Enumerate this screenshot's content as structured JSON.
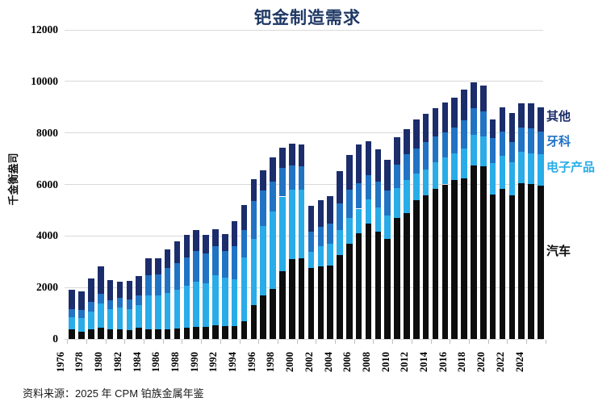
{
  "title": "钯金制造需求",
  "source": "资料来源：2025 年 CPM 铂族金属年鉴",
  "colors": {
    "automotive": "#0d0d0d",
    "electronics": "#29ace8",
    "dental": "#2173c4",
    "other": "#1c2d6b",
    "title_text": "#1f3864",
    "gridline": "#d9d9d9"
  },
  "legend": [
    {
      "label": "其他",
      "color": "#1c2d6b"
    },
    {
      "label": "牙科",
      "color": "#2173c4"
    },
    {
      "label": "电子产品",
      "color": "#29ace8"
    },
    {
      "label": "汽车",
      "color": "#0d0d0d"
    }
  ],
  "chart_data": {
    "type": "bar",
    "stacked": true,
    "title": "钯金制造需求",
    "ylabel": "千金衡盎司",
    "xlabel": "",
    "ylim": [
      0,
      12000
    ],
    "yticks": [
      0,
      2000,
      4000,
      6000,
      8000,
      10000,
      12000
    ],
    "grid": true,
    "legend_position": "right",
    "x": [
      1976,
      1977,
      1978,
      1979,
      1980,
      1981,
      1982,
      1983,
      1984,
      1985,
      1986,
      1987,
      1988,
      1989,
      1990,
      1991,
      1992,
      1993,
      1994,
      1995,
      1996,
      1997,
      1998,
      1999,
      2000,
      2001,
      2002,
      2003,
      2004,
      2005,
      2006,
      2007,
      2008,
      2009,
      2010,
      2011,
      2012,
      2013,
      2014,
      2015,
      2016,
      2017,
      2018,
      2019,
      2020,
      2021,
      2022,
      2023,
      2024,
      2025
    ],
    "x_tick_labels": [
      "1976",
      "1978",
      "1980",
      "1982",
      "1984",
      "1986",
      "1988",
      "1990",
      "1992",
      "1994",
      "1996",
      "1998",
      "2000",
      "2002",
      "2004",
      "2006",
      "2008",
      "2010",
      "2012",
      "2014",
      "2016",
      "2018",
      "2020",
      "2022",
      "2024"
    ],
    "series": [
      {
        "name": "汽车",
        "color": "#0d0d0d",
        "values": [
          380,
          280,
          380,
          430,
          380,
          380,
          330,
          430,
          380,
          380,
          380,
          410,
          430,
          480,
          480,
          530,
          490,
          490,
          700,
          1320,
          1700,
          1950,
          2640,
          3110,
          3140,
          2770,
          2830,
          2850,
          3270,
          3690,
          4090,
          4480,
          4170,
          3900,
          4690,
          4900,
          5380,
          5590,
          5820,
          6000,
          6160,
          6220,
          6740,
          6690,
          5600,
          5820,
          5590,
          6060,
          6030,
          5950
        ]
      },
      {
        "name": "电子产品",
        "color": "#29ace8",
        "values": [
          480,
          530,
          690,
          950,
          790,
          840,
          840,
          900,
          1300,
          1320,
          1420,
          1500,
          1630,
          1740,
          1680,
          1950,
          1890,
          1840,
          2470,
          2580,
          2680,
          3000,
          2890,
          2680,
          2650,
          620,
          760,
          860,
          950,
          1000,
          970,
          950,
          950,
          900,
          1160,
          1260,
          1030,
          1000,
          1030,
          1050,
          1050,
          1160,
          1180,
          1160,
          1240,
          1300,
          1260,
          1210,
          1190,
          1210
        ]
      },
      {
        "name": "牙科",
        "color": "#2173c4",
        "values": [
          300,
          320,
          370,
          370,
          340,
          370,
          370,
          370,
          810,
          820,
          950,
          1050,
          1110,
          1210,
          1160,
          1110,
          1050,
          1260,
          1070,
          1470,
          1370,
          1160,
          1110,
          950,
          900,
          780,
          760,
          770,
          1050,
          1110,
          1000,
          920,
          1000,
          950,
          930,
          1000,
          990,
          1050,
          1000,
          970,
          1000,
          1110,
          1030,
          1000,
          950,
          920,
          790,
          950,
          950,
          900
        ]
      },
      {
        "name": "其他",
        "color": "#1c2d6b",
        "values": [
          760,
          710,
          920,
          1080,
          790,
          630,
          730,
          750,
          650,
          600,
          730,
          840,
          880,
          790,
          720,
          680,
          630,
          1000,
          960,
          820,
          790,
          950,
          790,
          850,
          850,
          1000,
          1050,
          1080,
          1240,
          1330,
          1500,
          1340,
          1240,
          1190,
          1050,
          1000,
          1110,
          1100,
          1120,
          1160,
          1160,
          1190,
          1000,
          1000,
          740,
          940,
          1130,
          940,
          980,
          940
        ]
      }
    ]
  }
}
